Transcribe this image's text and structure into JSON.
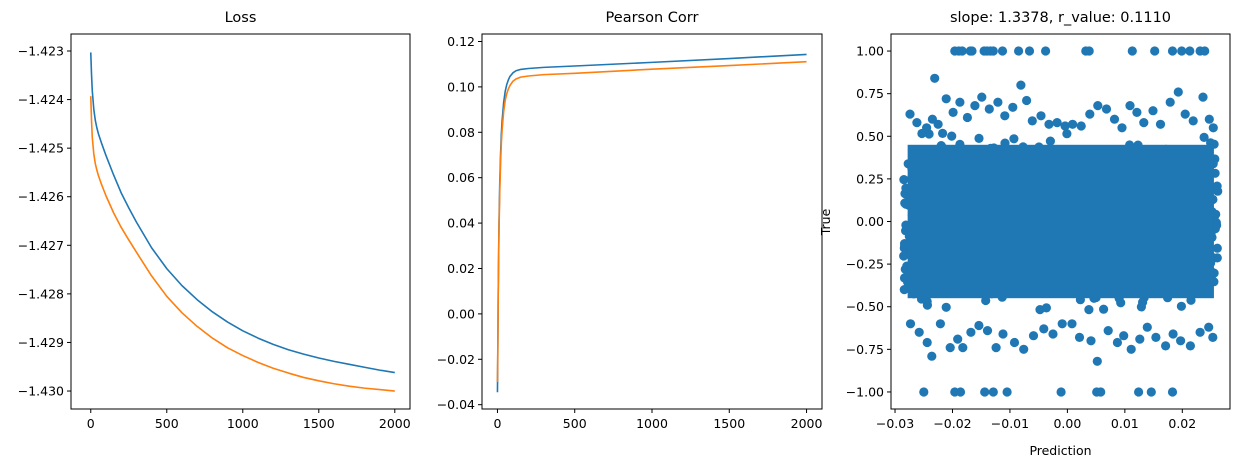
{
  "colors": {
    "blue": "#1f77b4",
    "orange": "#ff7f0e",
    "frame": "#000000",
    "background": "#ffffff"
  },
  "chart_data": [
    {
      "type": "line",
      "title": "Loss",
      "xlabel": "",
      "ylabel": "",
      "xlim": [
        -130,
        2100
      ],
      "ylim": [
        -1.43037,
        -1.42265
      ],
      "xticks": [
        0,
        500,
        1000,
        1500,
        2000
      ],
      "xtick_labels": [
        "0",
        "500",
        "1000",
        "1500",
        "2000"
      ],
      "yticks": [
        -1.423,
        -1.424,
        -1.425,
        -1.426,
        -1.427,
        -1.428,
        -1.429,
        -1.43
      ],
      "ytick_labels": [
        "−1.423",
        "−1.424",
        "−1.425",
        "−1.426",
        "−1.427",
        "−1.428",
        "−1.429",
        "−1.430"
      ],
      "grid": false,
      "series": [
        {
          "color": "#1f77b4",
          "x": [
            0,
            5,
            10,
            20,
            30,
            40,
            50,
            70,
            100,
            150,
            200,
            250,
            300,
            400,
            500,
            600,
            700,
            800,
            900,
            1000,
            1100,
            1200,
            1300,
            1400,
            1500,
            1600,
            1700,
            1800,
            1900,
            2000
          ],
          "y": [
            -1.42303,
            -1.42348,
            -1.42382,
            -1.4242,
            -1.42443,
            -1.42458,
            -1.4247,
            -1.42489,
            -1.42515,
            -1.42555,
            -1.42592,
            -1.42623,
            -1.42652,
            -1.42705,
            -1.42748,
            -1.42783,
            -1.42812,
            -1.42837,
            -1.42858,
            -1.42876,
            -1.42891,
            -1.42904,
            -1.42915,
            -1.42924,
            -1.42932,
            -1.42939,
            -1.42945,
            -1.42951,
            -1.42957,
            -1.42962
          ]
        },
        {
          "color": "#ff7f0e",
          "x": [
            0,
            5,
            10,
            20,
            30,
            40,
            50,
            70,
            100,
            150,
            200,
            250,
            300,
            400,
            500,
            600,
            700,
            800,
            900,
            1000,
            1100,
            1200,
            1300,
            1400,
            1500,
            1600,
            1700,
            1800,
            1900,
            2000
          ],
          "y": [
            -1.42393,
            -1.42443,
            -1.42478,
            -1.42512,
            -1.42532,
            -1.42545,
            -1.42556,
            -1.42574,
            -1.42598,
            -1.42633,
            -1.42663,
            -1.42689,
            -1.42714,
            -1.42763,
            -1.42805,
            -1.42839,
            -1.42867,
            -1.42891,
            -1.42911,
            -1.42927,
            -1.42941,
            -1.42953,
            -1.42963,
            -1.42972,
            -1.42979,
            -1.42985,
            -1.4299,
            -1.42994,
            -1.42997,
            -1.43
          ]
        }
      ]
    },
    {
      "type": "line",
      "title": "Pearson Corr",
      "xlabel": "",
      "ylabel": "",
      "xlim": [
        -100,
        2100
      ],
      "ylim": [
        -0.0419,
        0.1233
      ],
      "xticks": [
        0,
        500,
        1000,
        1500,
        2000
      ],
      "xtick_labels": [
        "0",
        "500",
        "1000",
        "1500",
        "2000"
      ],
      "yticks": [
        -0.04,
        -0.02,
        0,
        0.02,
        0.04,
        0.06,
        0.08,
        0.1,
        0.12
      ],
      "ytick_labels": [
        "−0.04",
        "−0.02",
        "0.00",
        "0.02",
        "0.04",
        "0.06",
        "0.08",
        "0.10",
        "0.12"
      ],
      "grid": false,
      "series": [
        {
          "color": "#1f77b4",
          "x": [
            0,
            2,
            5,
            10,
            15,
            20,
            25,
            30,
            40,
            50,
            60,
            70,
            80,
            100,
            120,
            150,
            200,
            300,
            500,
            1000,
            1500,
            2000
          ],
          "y": [
            -0.0345,
            -0.02,
            0.01,
            0.04,
            0.058,
            0.07,
            0.079,
            0.085,
            0.093,
            0.098,
            0.101,
            0.103,
            0.1045,
            0.1062,
            0.1071,
            0.1077,
            0.1081,
            0.1086,
            0.1092,
            0.1108,
            0.1125,
            0.1143
          ]
        },
        {
          "color": "#ff7f0e",
          "x": [
            0,
            2,
            5,
            10,
            15,
            20,
            25,
            30,
            40,
            50,
            60,
            70,
            80,
            100,
            120,
            150,
            200,
            300,
            500,
            1000,
            1500,
            2000
          ],
          "y": [
            -0.03,
            -0.017,
            0.01,
            0.037,
            0.054,
            0.066,
            0.075,
            0.081,
            0.089,
            0.094,
            0.097,
            0.099,
            0.1005,
            0.1025,
            0.1035,
            0.1043,
            0.1048,
            0.1054,
            0.106,
            0.1078,
            0.1094,
            0.1111
          ]
        }
      ]
    },
    {
      "type": "scatter",
      "title": "slope: 1.3378, r_value: 0.1110",
      "xlabel": "Prediction",
      "ylabel": "True",
      "xlim": [
        -0.0307,
        0.0283
      ],
      "ylim": [
        -1.1,
        1.1
      ],
      "xticks": [
        -0.03,
        -0.02,
        -0.01,
        0,
        0.01,
        0.02
      ],
      "xtick_labels": [
        "−0.03",
        "−0.02",
        "−0.01",
        "0.00",
        "0.01",
        "0.02"
      ],
      "yticks": [
        1,
        0.75,
        0.5,
        0.25,
        0,
        -0.25,
        -0.5,
        -0.75,
        -1
      ],
      "ytick_labels": [
        "1.00",
        "0.75",
        "0.50",
        "0.25",
        "0.00",
        "−0.25",
        "−0.50",
        "−0.75",
        "−1.00"
      ],
      "grid": false,
      "series": [
        {
          "color": "#1f77b4",
          "dense_region": {
            "x_range": [
              -0.0285,
              0.0262
            ],
            "y_range": [
              -0.52,
              0.52
            ]
          },
          "points": [
            [
              -0.0274,
              0.63
            ],
            [
              -0.0262,
              0.58
            ],
            [
              -0.0245,
              0.55
            ],
            [
              -0.0235,
              0.6
            ],
            [
              -0.0225,
              0.57
            ],
            [
              -0.0231,
              0.84
            ],
            [
              -0.0211,
              0.72
            ],
            [
              -0.0199,
              0.64
            ],
            [
              -0.0187,
              0.7
            ],
            [
              -0.0174,
              0.61
            ],
            [
              -0.0161,
              0.68
            ],
            [
              -0.0149,
              0.73
            ],
            [
              -0.0136,
              0.66
            ],
            [
              -0.0121,
              0.7
            ],
            [
              -0.0109,
              0.62
            ],
            [
              -0.0095,
              0.67
            ],
            [
              -0.0081,
              0.8
            ],
            [
              -0.0071,
              0.71
            ],
            [
              -0.0061,
              0.59
            ],
            [
              -0.0046,
              0.62
            ],
            [
              -0.0032,
              0.57
            ],
            [
              -0.0018,
              0.58
            ],
            [
              -0.0004,
              0.56
            ],
            [
              0.0009,
              0.57
            ],
            [
              0.0024,
              0.56
            ],
            [
              0.0039,
              0.63
            ],
            [
              0.0053,
              0.68
            ],
            [
              0.0068,
              0.66
            ],
            [
              0.0082,
              0.6
            ],
            [
              0.0095,
              0.55
            ],
            [
              0.0109,
              0.68
            ],
            [
              0.0121,
              0.64
            ],
            [
              0.0133,
              0.58
            ],
            [
              0.0149,
              0.65
            ],
            [
              0.0162,
              0.57
            ],
            [
              0.0179,
              0.7
            ],
            [
              0.0193,
              0.76
            ],
            [
              0.0205,
              0.63
            ],
            [
              0.0219,
              0.59
            ],
            [
              0.0236,
              0.73
            ],
            [
              0.0247,
              0.6
            ],
            [
              0.0254,
              0.55
            ],
            [
              -0.0273,
              -0.6
            ],
            [
              -0.0258,
              -0.65
            ],
            [
              -0.0244,
              -0.71
            ],
            [
              -0.0236,
              -0.79
            ],
            [
              -0.0221,
              -0.6
            ],
            [
              -0.0204,
              -0.74
            ],
            [
              -0.0191,
              -0.69
            ],
            [
              -0.0182,
              -0.74
            ],
            [
              -0.0168,
              -0.65
            ],
            [
              -0.0154,
              -0.61
            ],
            [
              -0.0139,
              -0.64
            ],
            [
              -0.0124,
              -0.74
            ],
            [
              -0.0112,
              -0.66
            ],
            [
              -0.0092,
              -0.71
            ],
            [
              -0.0076,
              -0.75
            ],
            [
              -0.0059,
              -0.67
            ],
            [
              -0.0041,
              -0.63
            ],
            [
              -0.0025,
              -0.66
            ],
            [
              -0.0009,
              -0.6
            ],
            [
              0.0008,
              -0.6
            ],
            [
              0.0021,
              -0.68
            ],
            [
              0.0041,
              -0.7
            ],
            [
              0.0052,
              -0.82
            ],
            [
              0.0071,
              -0.64
            ],
            [
              0.0087,
              -0.71
            ],
            [
              0.0098,
              -0.67
            ],
            [
              0.0111,
              -0.75
            ],
            [
              0.0126,
              -0.69
            ],
            [
              0.0139,
              -0.62
            ],
            [
              0.0154,
              -0.68
            ],
            [
              0.0171,
              -0.73
            ],
            [
              0.0184,
              -0.66
            ],
            [
              0.0197,
              -0.7
            ],
            [
              0.0214,
              -0.73
            ],
            [
              0.0231,
              -0.65
            ],
            [
              0.0246,
              -0.62
            ],
            [
              0.0253,
              -0.68
            ],
            [
              -0.0196,
              1.0
            ],
            [
              -0.0189,
              1.0
            ],
            [
              -0.0183,
              1.0
            ],
            [
              -0.0169,
              1.0
            ],
            [
              -0.0166,
              1.0
            ],
            [
              -0.0145,
              1.0
            ],
            [
              -0.014,
              1.0
            ],
            [
              -0.0134,
              1.0
            ],
            [
              -0.0129,
              1.0
            ],
            [
              -0.0113,
              1.0
            ],
            [
              -0.0085,
              1.0
            ],
            [
              -0.0066,
              1.0
            ],
            [
              -0.0038,
              1.0
            ],
            [
              0.0032,
              1.0
            ],
            [
              0.0038,
              1.0
            ],
            [
              0.0113,
              1.0
            ],
            [
              0.0152,
              1.0
            ],
            [
              0.0183,
              1.0
            ],
            [
              0.0199,
              1.0
            ],
            [
              0.0213,
              1.0
            ],
            [
              0.0231,
              1.0
            ],
            [
              0.0239,
              1.0
            ],
            [
              -0.025,
              -1.0
            ],
            [
              -0.0196,
              -1.0
            ],
            [
              -0.0186,
              -1.0
            ],
            [
              -0.0144,
              -1.0
            ],
            [
              -0.0129,
              -1.0
            ],
            [
              -0.0105,
              -1.0
            ],
            [
              -0.0011,
              -1.0
            ],
            [
              0.0051,
              -1.0
            ],
            [
              0.0058,
              -1.0
            ],
            [
              0.0124,
              -1.0
            ],
            [
              0.0146,
              -1.0
            ],
            [
              0.0183,
              -1.0
            ]
          ]
        }
      ]
    }
  ]
}
